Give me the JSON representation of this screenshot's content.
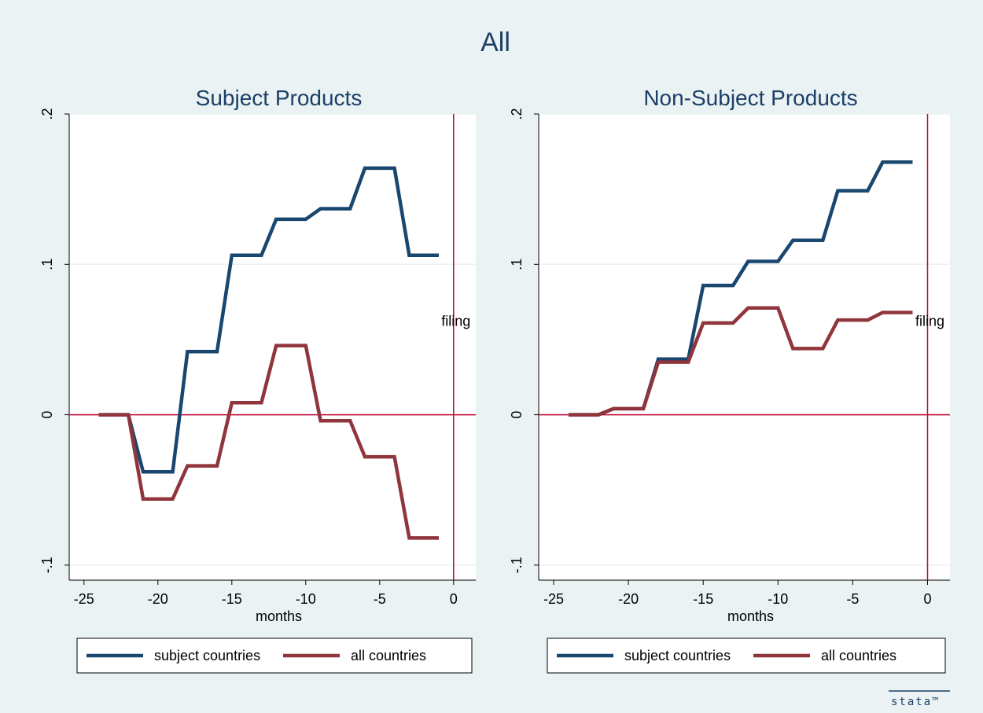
{
  "figure_title": "All",
  "logo_text": "stata™",
  "colors": {
    "background": "#eaf2f3",
    "plot_bg": "#ffffff",
    "series1": "#1a476f",
    "series2": "#90353b",
    "refline": "#c10534",
    "title": "#1c3f68"
  },
  "chart_data": [
    {
      "type": "line",
      "title": "Subject Products",
      "xlabel": "months",
      "ylabel": "",
      "xlim": [
        -26,
        1.5
      ],
      "ylim": [
        -0.11,
        0.2
      ],
      "xticks": [
        -25,
        -20,
        -15,
        -10,
        -5,
        0
      ],
      "xtick_labels": [
        "-25",
        "-20",
        "-15",
        "-10",
        "-5",
        "0"
      ],
      "yticks": [
        -0.1,
        0,
        0.1,
        0.2
      ],
      "ytick_labels": [
        "-.1",
        "0",
        ".1",
        ".2"
      ],
      "hline": 0,
      "vline": 0,
      "annotation": {
        "text": "filing",
        "x": 0,
        "y": 0.058
      },
      "legend": "bottom",
      "series": [
        {
          "name": "subject countries",
          "x": [
            -24,
            -23,
            -22,
            -21,
            -20,
            -19,
            -18,
            -17,
            -16,
            -15,
            -14,
            -13,
            -12,
            -11,
            -10,
            -9,
            -8,
            -7,
            -6,
            -5,
            -4,
            -3,
            -2,
            -1
          ],
          "values": [
            0,
            0,
            0,
            -0.038,
            -0.038,
            -0.038,
            0.042,
            0.042,
            0.042,
            0.106,
            0.106,
            0.106,
            0.13,
            0.13,
            0.13,
            0.137,
            0.137,
            0.137,
            0.164,
            0.164,
            0.164,
            0.106,
            0.106,
            0.106
          ]
        },
        {
          "name": "all countries",
          "x": [
            -24,
            -23,
            -22,
            -21,
            -20,
            -19,
            -18,
            -17,
            -16,
            -15,
            -14,
            -13,
            -12,
            -11,
            -10,
            -9,
            -8,
            -7,
            -6,
            -5,
            -4,
            -3,
            -2,
            -1
          ],
          "values": [
            0,
            0,
            0,
            -0.056,
            -0.056,
            -0.056,
            -0.034,
            -0.034,
            -0.034,
            0.008,
            0.008,
            0.008,
            0.046,
            0.046,
            0.046,
            -0.004,
            -0.004,
            -0.004,
            -0.028,
            -0.028,
            -0.028,
            -0.082,
            -0.082,
            -0.082
          ]
        }
      ]
    },
    {
      "type": "line",
      "title": "Non-Subject Products",
      "xlabel": "months",
      "ylabel": "",
      "xlim": [
        -26,
        1.5
      ],
      "ylim": [
        -0.11,
        0.2
      ],
      "xticks": [
        -25,
        -20,
        -15,
        -10,
        -5,
        0
      ],
      "xtick_labels": [
        "-25",
        "-20",
        "-15",
        "-10",
        "-5",
        "0"
      ],
      "yticks": [
        -0.1,
        0,
        0.1,
        0.2
      ],
      "ytick_labels": [
        "-.1",
        "0",
        ".1",
        ".2"
      ],
      "hline": 0,
      "vline": 0,
      "annotation": {
        "text": "filing",
        "x": 0,
        "y": 0.058
      },
      "legend": "bottom",
      "series": [
        {
          "name": "subject countries",
          "x": [
            -24,
            -23,
            -22,
            -21,
            -20,
            -19,
            -18,
            -17,
            -16,
            -15,
            -14,
            -13,
            -12,
            -11,
            -10,
            -9,
            -8,
            -7,
            -6,
            -5,
            -4,
            -3,
            -2,
            -1
          ],
          "values": [
            0,
            0,
            0,
            0.004,
            0.004,
            0.004,
            0.037,
            0.037,
            0.037,
            0.086,
            0.086,
            0.086,
            0.102,
            0.102,
            0.102,
            0.116,
            0.116,
            0.116,
            0.149,
            0.149,
            0.149,
            0.168,
            0.168,
            0.168
          ]
        },
        {
          "name": "all countries",
          "x": [
            -24,
            -23,
            -22,
            -21,
            -20,
            -19,
            -18,
            -17,
            -16,
            -15,
            -14,
            -13,
            -12,
            -11,
            -10,
            -9,
            -8,
            -7,
            -6,
            -5,
            -4,
            -3,
            -2,
            -1
          ],
          "values": [
            0,
            0,
            0,
            0.004,
            0.004,
            0.004,
            0.035,
            0.035,
            0.035,
            0.061,
            0.061,
            0.061,
            0.071,
            0.071,
            0.071,
            0.044,
            0.044,
            0.044,
            0.063,
            0.063,
            0.063,
            0.068,
            0.068,
            0.068
          ]
        }
      ]
    }
  ]
}
